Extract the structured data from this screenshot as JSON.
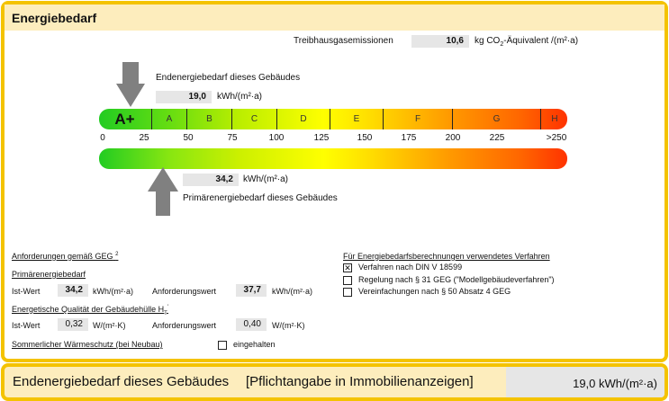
{
  "header": {
    "title": "Energiebedarf"
  },
  "emissions": {
    "label": "Treibhausgasemissionen",
    "value": "10,6",
    "unit_pre": "kg CO",
    "unit_sub": "2",
    "unit_post": "-Äquivalent /(m²·a)"
  },
  "endenergie": {
    "label": "Endenergiebedarf dieses Gebäudes",
    "value": "19,0",
    "unit": "kWh/(m²·a)",
    "scale_value": 19.0
  },
  "primaer": {
    "label": "Primärenergiebedarf dieses Gebäudes",
    "value": "34,2",
    "unit": "kWh/(m²·a)",
    "scale_value": 34.2
  },
  "classes": [
    "A+",
    "A",
    "B",
    "C",
    "D",
    "E",
    "F",
    "G",
    "H"
  ],
  "ticks": [
    "0",
    "25",
    "50",
    "75",
    "100",
    "125",
    "150",
    "175",
    "200",
    "225",
    ">250"
  ],
  "colors": {
    "border": "#f4c300",
    "header_bg": "#fdedbd",
    "arrow": "#808080",
    "box": "#e6e6e6"
  },
  "requirements": {
    "title": "Anforderungen gemäß GEG",
    "title_sup": "2",
    "primaer": {
      "title": "Primärenergiebedarf",
      "ist_label": "Ist-Wert",
      "ist_value": "34,2",
      "unit": "kWh/(m²·a)",
      "anf_label": "Anforderungswert",
      "anf_value": "37,7"
    },
    "huelle": {
      "title": "Energetische Qualität der Gebäudehülle H",
      "title_sub": "T",
      "title_sup": "'",
      "ist_label": "Ist-Wert",
      "ist_value": "0,32",
      "unit": "W/(m²·K)",
      "anf_label": "Anforderungswert",
      "anf_value": "0,40"
    },
    "sommer": {
      "label": "Sommerlicher Wärmeschutz (bei Neubau)",
      "checkbox_label": "eingehalten",
      "checked": false
    }
  },
  "verfahren": {
    "title": "Für Energiebedarfsberechnungen verwendetes Verfahren",
    "options": [
      {
        "label": "Verfahren nach DIN V 18599",
        "checked": true
      },
      {
        "label": "Regelung nach § 31 GEG (\"Modellgebäudeverfahren\")",
        "checked": false
      },
      {
        "label": "Vereinfachungen nach § 50 Absatz 4 GEG",
        "checked": false
      }
    ]
  },
  "footer": {
    "label": "Endenergiebedarf dieses Gebäudes",
    "note": "[Pflichtangabe in Immobilienanzeigen]",
    "value": "19,0 kWh/(m²·a)"
  }
}
